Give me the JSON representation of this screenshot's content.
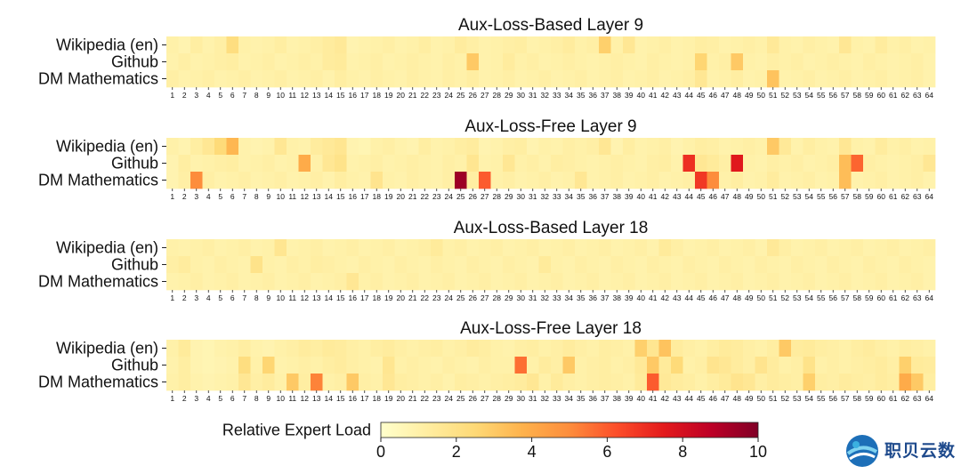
{
  "chart_data": {
    "type": "heatmap",
    "rows": [
      "Wikipedia (en)",
      "Github",
      "DM Mathematics"
    ],
    "columns": [
      1,
      2,
      3,
      4,
      5,
      6,
      7,
      8,
      9,
      10,
      11,
      12,
      13,
      14,
      15,
      16,
      17,
      18,
      19,
      20,
      21,
      22,
      23,
      24,
      25,
      26,
      27,
      28,
      29,
      30,
      31,
      32,
      33,
      34,
      35,
      36,
      37,
      38,
      39,
      40,
      41,
      42,
      43,
      44,
      45,
      46,
      47,
      48,
      49,
      50,
      51,
      52,
      53,
      54,
      55,
      56,
      57,
      58,
      59,
      60,
      61,
      62,
      63,
      64
    ],
    "colorbar": {
      "label": "Relative Expert Load",
      "min": 0,
      "max": 10,
      "ticks": [
        0,
        2,
        4,
        6,
        8,
        10
      ]
    },
    "panels": [
      {
        "title": "Aux-Loss-Based Layer 9",
        "values": [
          [
            1.0,
            0.8,
            1.2,
            0.9,
            1.1,
            2.2,
            1.0,
            0.9,
            1.0,
            1.2,
            0.9,
            1.0,
            1.1,
            1.3,
            1.5,
            0.8,
            0.9,
            1.0,
            1.1,
            0.9,
            1.0,
            1.2,
            0.9,
            1.0,
            1.3,
            1.1,
            0.9,
            1.0,
            1.1,
            1.2,
            0.9,
            1.0,
            1.1,
            1.3,
            1.0,
            1.1,
            2.8,
            1.0,
            1.6,
            0.9,
            1.0,
            1.1,
            0.9,
            1.0,
            1.2,
            1.1,
            0.9,
            1.0,
            1.1,
            1.0,
            1.5,
            1.0,
            0.9,
            1.1,
            1.0,
            0.9,
            1.6,
            1.0,
            0.9,
            1.3,
            1.0,
            1.1,
            0.9,
            1.0
          ],
          [
            0.9,
            1.1,
            0.9,
            1.0,
            1.1,
            1.2,
            0.9,
            1.0,
            1.1,
            0.9,
            1.0,
            1.1,
            1.0,
            1.3,
            1.4,
            0.9,
            1.0,
            1.1,
            0.9,
            1.0,
            1.1,
            1.0,
            0.9,
            1.1,
            1.0,
            3.0,
            0.9,
            1.0,
            1.3,
            1.0,
            1.1,
            0.9,
            1.0,
            1.1,
            1.0,
            0.9,
            1.0,
            1.1,
            1.0,
            0.9,
            1.1,
            1.0,
            0.9,
            1.0,
            2.6,
            1.0,
            1.1,
            3.0,
            1.0,
            0.9,
            1.1,
            1.0,
            1.1,
            0.9,
            1.0,
            1.1,
            1.0,
            0.9,
            1.1,
            1.0,
            0.9,
            1.0,
            1.1,
            0.9
          ],
          [
            1.1,
            0.9,
            1.0,
            1.1,
            0.9,
            1.0,
            1.1,
            0.9,
            1.0,
            1.1,
            0.9,
            1.0,
            1.1,
            0.9,
            1.2,
            1.0,
            0.9,
            1.1,
            1.0,
            0.9,
            1.1,
            1.0,
            0.9,
            1.1,
            1.0,
            1.2,
            0.9,
            1.0,
            1.1,
            0.9,
            1.0,
            1.1,
            0.9,
            1.0,
            1.1,
            0.9,
            1.0,
            1.1,
            0.9,
            1.0,
            1.1,
            0.9,
            1.0,
            1.1,
            1.6,
            0.9,
            1.0,
            1.2,
            0.9,
            1.0,
            3.2,
            0.9,
            1.0,
            1.1,
            0.9,
            1.0,
            1.1,
            0.9,
            1.0,
            1.1,
            0.9,
            1.0,
            1.1,
            0.9
          ]
        ]
      },
      {
        "title": "Aux-Loss-Free Layer 9",
        "values": [
          [
            1.0,
            0.8,
            1.2,
            1.6,
            2.4,
            3.6,
            0.9,
            0.8,
            0.9,
            1.6,
            1.0,
            0.9,
            1.3,
            1.5,
            1.7,
            0.8,
            0.7,
            1.0,
            1.1,
            0.9,
            0.8,
            1.2,
            0.9,
            1.0,
            1.2,
            1.3,
            0.8,
            0.9,
            1.1,
            1.2,
            0.8,
            1.0,
            0.9,
            1.1,
            1.0,
            1.1,
            1.6,
            0.8,
            1.2,
            0.9,
            1.0,
            1.1,
            0.8,
            1.0,
            1.2,
            1.1,
            0.9,
            1.0,
            1.1,
            1.0,
            3.0,
            1.5,
            0.9,
            1.2,
            1.0,
            0.9,
            1.6,
            1.0,
            0.9,
            1.3,
            1.0,
            1.1,
            0.9,
            1.0
          ],
          [
            0.8,
            1.2,
            0.9,
            1.0,
            1.1,
            1.2,
            0.9,
            1.0,
            1.1,
            0.9,
            1.0,
            4.0,
            1.0,
            1.6,
            1.9,
            0.9,
            1.0,
            1.1,
            0.9,
            1.0,
            1.1,
            1.0,
            0.9,
            1.1,
            1.0,
            1.7,
            0.9,
            1.0,
            1.6,
            1.0,
            1.1,
            0.9,
            1.2,
            1.1,
            1.0,
            0.9,
            1.0,
            1.1,
            1.0,
            0.9,
            1.1,
            1.2,
            0.9,
            7.0,
            1.6,
            1.4,
            1.1,
            7.6,
            1.0,
            0.9,
            1.1,
            1.0,
            1.1,
            0.9,
            1.0,
            1.1,
            3.4,
            5.8,
            1.1,
            1.0,
            0.9,
            1.0,
            1.1,
            1.6
          ],
          [
            0.8,
            1.1,
            5.0,
            1.1,
            0.9,
            1.0,
            1.1,
            0.9,
            1.0,
            1.1,
            0.9,
            1.0,
            1.1,
            0.9,
            1.2,
            1.0,
            0.9,
            1.8,
            1.0,
            0.9,
            1.1,
            1.0,
            0.9,
            1.1,
            9.4,
            1.2,
            6.0,
            1.0,
            1.1,
            0.9,
            1.0,
            1.1,
            0.9,
            1.0,
            1.6,
            0.9,
            1.0,
            1.1,
            0.9,
            1.0,
            1.1,
            0.9,
            1.0,
            1.1,
            6.8,
            5.0,
            1.0,
            1.2,
            0.9,
            1.0,
            1.3,
            0.9,
            1.0,
            1.1,
            0.9,
            1.0,
            3.4,
            0.9,
            1.0,
            1.1,
            0.9,
            1.0,
            1.1,
            0.9
          ]
        ]
      },
      {
        "title": "Aux-Loss-Based Layer 18",
        "values": [
          [
            1.0,
            0.9,
            1.0,
            1.1,
            0.9,
            1.0,
            1.1,
            0.9,
            1.0,
            1.7,
            0.9,
            1.0,
            1.1,
            0.9,
            1.0,
            1.1,
            0.9,
            1.0,
            1.1,
            0.9,
            1.0,
            1.1,
            1.4,
            1.0,
            1.1,
            0.9,
            1.0,
            1.1,
            0.9,
            1.0,
            1.1,
            0.9,
            1.0,
            1.1,
            0.9,
            1.0,
            1.1,
            0.9,
            1.0,
            1.1,
            0.9,
            1.4,
            1.1,
            0.9,
            1.0,
            1.1,
            0.9,
            1.0,
            1.1,
            0.9,
            1.5,
            1.1,
            0.9,
            1.0,
            1.1,
            0.9,
            1.0,
            1.1,
            0.9,
            1.0,
            1.1,
            0.9,
            1.0,
            1.1
          ],
          [
            1.1,
            1.3,
            1.0,
            0.9,
            1.1,
            1.0,
            0.9,
            1.9,
            1.0,
            0.9,
            1.1,
            1.0,
            1.2,
            1.1,
            1.0,
            0.9,
            1.1,
            1.0,
            0.9,
            1.1,
            1.0,
            0.9,
            1.1,
            1.0,
            0.9,
            1.1,
            1.0,
            0.9,
            1.1,
            1.0,
            0.9,
            1.4,
            1.0,
            0.9,
            1.1,
            1.0,
            0.9,
            1.1,
            1.0,
            0.9,
            1.1,
            1.0,
            0.9,
            1.1,
            1.0,
            0.9,
            1.1,
            1.0,
            0.9,
            1.1,
            1.0,
            0.9,
            1.1,
            1.0,
            0.9,
            1.1,
            1.0,
            0.9,
            1.1,
            1.0,
            0.9,
            1.1,
            1.0,
            0.9
          ],
          [
            0.9,
            1.0,
            1.1,
            0.9,
            1.0,
            1.1,
            0.9,
            1.0,
            1.1,
            0.9,
            1.0,
            1.1,
            0.9,
            1.0,
            1.1,
            1.6,
            1.0,
            1.1,
            0.9,
            1.0,
            1.1,
            0.9,
            1.0,
            1.1,
            0.9,
            1.0,
            1.1,
            0.9,
            1.0,
            1.1,
            0.9,
            1.0,
            1.1,
            0.9,
            1.0,
            1.1,
            0.9,
            1.0,
            1.1,
            0.9,
            1.0,
            1.1,
            0.9,
            1.0,
            1.1,
            0.9,
            1.0,
            1.1,
            0.9,
            1.0,
            1.1,
            0.9,
            1.0,
            1.1,
            0.9,
            1.0,
            1.1,
            0.9,
            1.0,
            1.1,
            0.9,
            1.0,
            1.1,
            0.9
          ]
        ]
      },
      {
        "title": "Aux-Loss-Free Layer 18",
        "values": [
          [
            1.0,
            1.4,
            0.8,
            0.7,
            0.9,
            1.0,
            1.2,
            0.9,
            0.8,
            1.0,
            1.1,
            1.3,
            1.2,
            1.4,
            1.3,
            1.1,
            1.0,
            1.2,
            1.3,
            1.1,
            1.0,
            1.1,
            1.2,
            1.0,
            1.1,
            1.3,
            1.2,
            1.0,
            0.9,
            1.1,
            1.2,
            1.0,
            1.1,
            1.3,
            1.1,
            1.0,
            1.2,
            1.1,
            1.0,
            2.8,
            1.7,
            3.2,
            1.3,
            1.1,
            1.0,
            1.2,
            1.4,
            1.3,
            1.1,
            1.0,
            1.2,
            3.0,
            1.3,
            1.4,
            1.2,
            1.1,
            1.0,
            1.2,
            1.3,
            1.1,
            1.0,
            1.2,
            1.1,
            1.0
          ],
          [
            0.9,
            1.2,
            0.8,
            0.7,
            0.8,
            0.9,
            2.2,
            1.0,
            2.6,
            0.9,
            1.0,
            1.1,
            1.0,
            1.2,
            1.3,
            1.1,
            1.0,
            0.9,
            1.7,
            1.0,
            1.1,
            1.0,
            0.9,
            1.1,
            1.0,
            0.9,
            1.1,
            1.0,
            1.0,
            5.6,
            1.0,
            1.3,
            1.1,
            3.0,
            1.0,
            1.1,
            1.2,
            1.0,
            1.1,
            1.5,
            3.0,
            1.4,
            2.4,
            1.0,
            1.1,
            1.8,
            1.6,
            1.3,
            1.1,
            1.8,
            1.3,
            1.0,
            1.1,
            1.9,
            1.0,
            1.1,
            1.0,
            1.1,
            1.2,
            1.3,
            1.1,
            2.8,
            1.4,
            1.3
          ],
          [
            1.0,
            1.2,
            0.9,
            0.8,
            0.9,
            1.0,
            1.6,
            1.1,
            1.3,
            1.0,
            3.0,
            1.2,
            5.2,
            1.0,
            1.1,
            3.0,
            1.1,
            1.0,
            1.6,
            1.2,
            1.1,
            1.0,
            1.1,
            0.9,
            1.2,
            1.1,
            1.0,
            1.1,
            1.2,
            1.3,
            1.6,
            1.0,
            1.4,
            1.1,
            1.0,
            1.1,
            1.2,
            1.1,
            1.0,
            1.4,
            6.0,
            1.5,
            1.3,
            1.2,
            1.0,
            1.2,
            1.4,
            1.8,
            1.6,
            1.1,
            1.3,
            1.2,
            1.1,
            2.8,
            1.2,
            1.1,
            1.3,
            1.2,
            1.1,
            1.3,
            1.2,
            4.0,
            3.0,
            1.2
          ]
        ]
      }
    ]
  },
  "watermark": {
    "text": "职贝云数"
  }
}
